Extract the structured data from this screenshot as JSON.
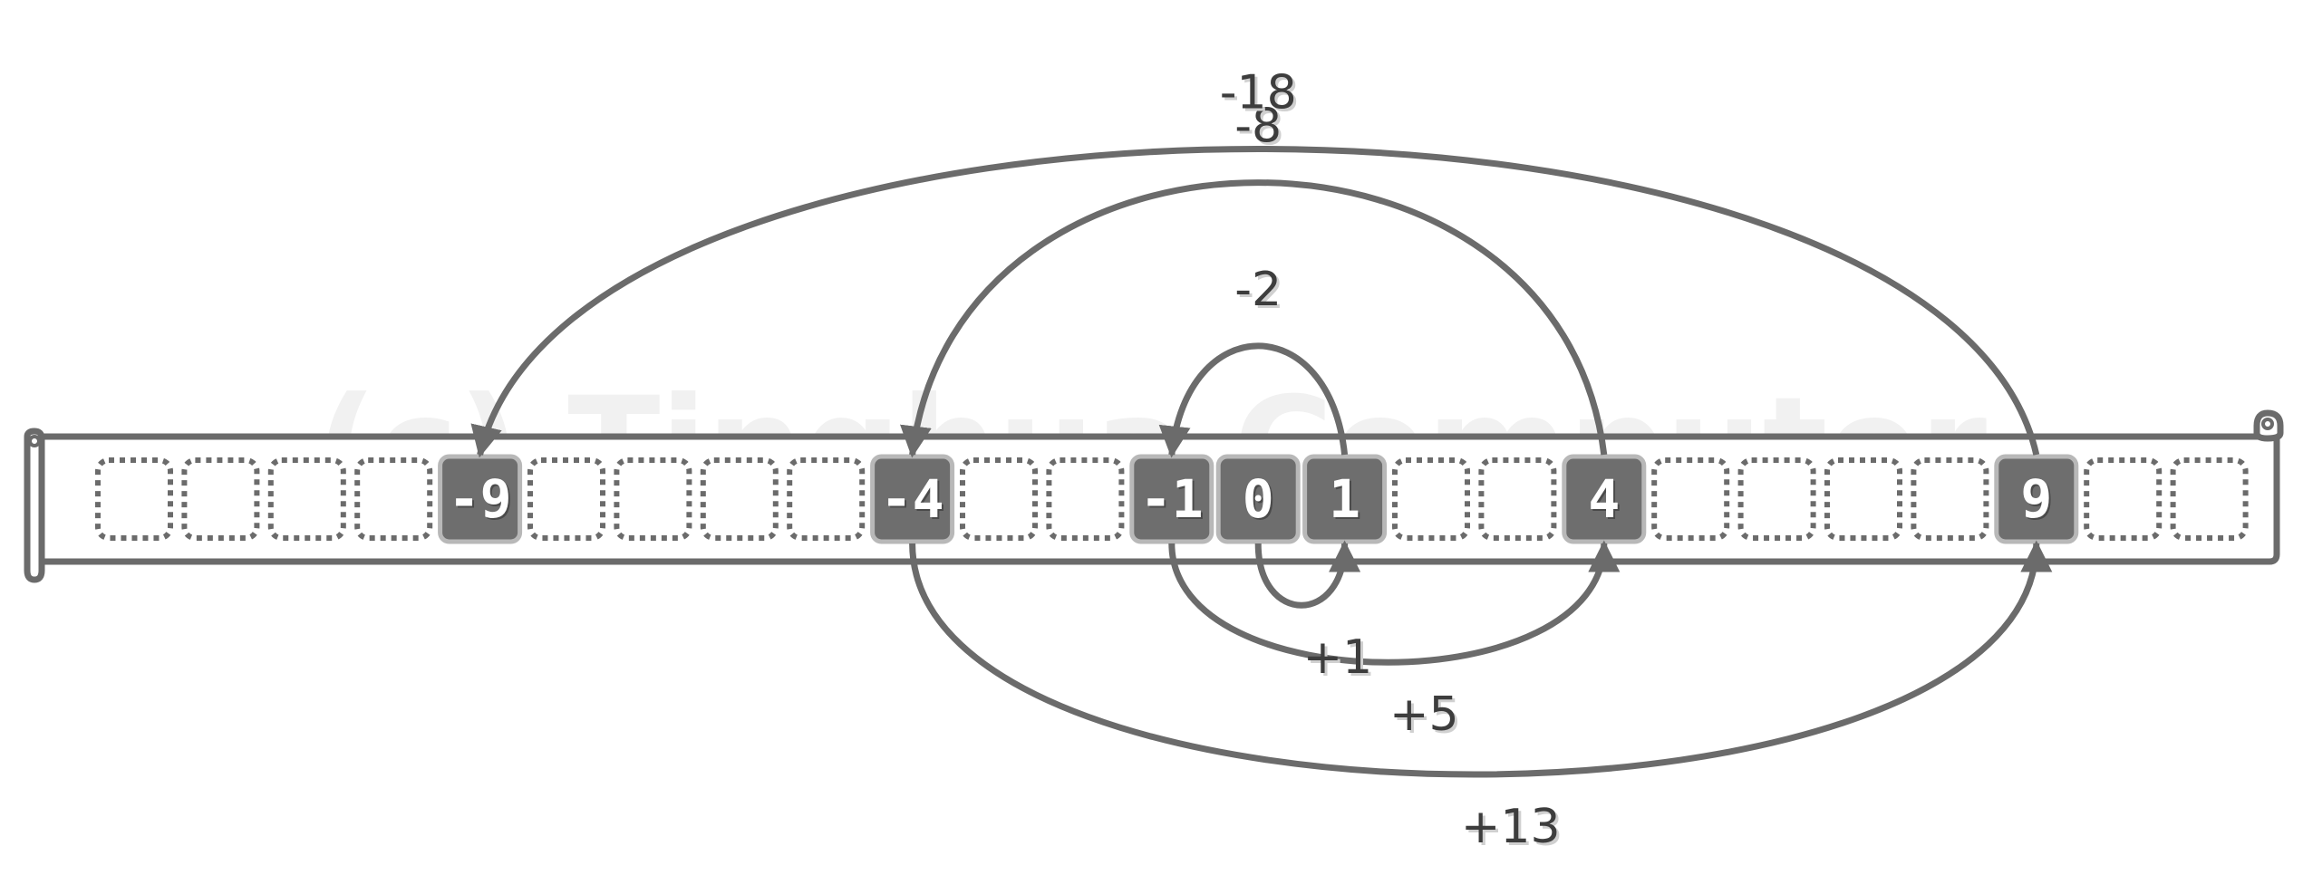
{
  "watermark": "(c) Tinghua Computer",
  "tape": {
    "cell_count": 25,
    "visited": [
      {
        "cell": 4,
        "value": "-9"
      },
      {
        "cell": 9,
        "value": "-4"
      },
      {
        "cell": 12,
        "value": "-1"
      },
      {
        "cell": 13,
        "value": "0"
      },
      {
        "cell": 14,
        "value": "1"
      },
      {
        "cell": 17,
        "value": "4"
      },
      {
        "cell": 22,
        "value": "9"
      }
    ]
  },
  "jumps": [
    {
      "from": "0",
      "to": "1",
      "label": "+1",
      "side": "below"
    },
    {
      "from": "1",
      "to": "-1",
      "label": "-2",
      "side": "above"
    },
    {
      "from": "-1",
      "to": "4",
      "label": "+5",
      "side": "below"
    },
    {
      "from": "4",
      "to": "-4",
      "label": "-8",
      "side": "above"
    },
    {
      "from": "-4",
      "to": "9",
      "label": "+13",
      "side": "below"
    },
    {
      "from": "9",
      "to": "-9",
      "label": "-18",
      "side": "above"
    }
  ],
  "colors": {
    "stroke": "#6b6b6b",
    "cell_fill": "#6e6e6e",
    "cell_border": "#b8b8b8",
    "dotted": "#6b6b6b",
    "text": "#3d3d3d"
  }
}
